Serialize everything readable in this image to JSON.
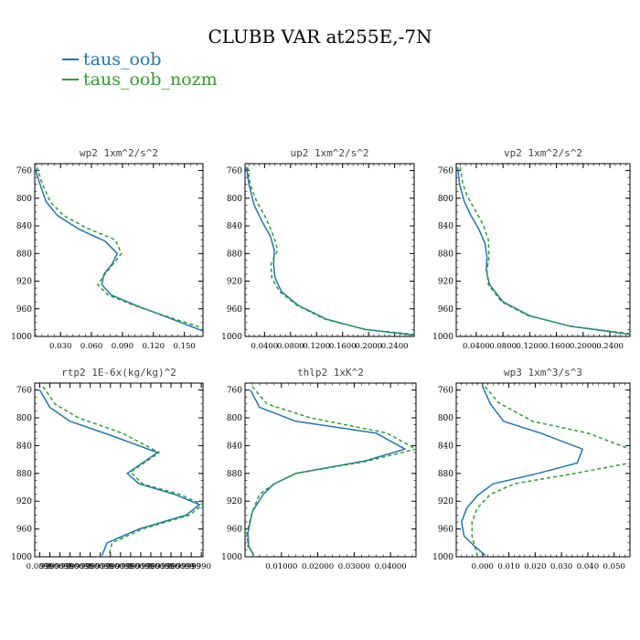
{
  "title": "CLUBB VAR at255E,-7N",
  "legend": [
    {
      "name": "taus_oob",
      "color": "#1f77b4"
    },
    {
      "name": "taus_oob_nozm",
      "color": "#2ca02c"
    }
  ],
  "chart_data": [
    {
      "type": "line",
      "title": "wp2  1xm^2/s^2",
      "xlim": [
        0.005,
        0.168
      ],
      "ylim": [
        1000,
        750
      ],
      "xticks": [
        0.03,
        0.06,
        0.09,
        0.12,
        0.15
      ],
      "xtick_labels": [
        "0.030",
        "0.060",
        "0.090",
        "0.120",
        "0.150"
      ],
      "yticks": [
        760,
        800,
        840,
        880,
        920,
        960,
        1000
      ],
      "series": [
        {
          "name": "taus_oob",
          "color": "#1f77b4",
          "dash": "",
          "points": [
            [
              0.005,
              755
            ],
            [
              0.009,
              775
            ],
            [
              0.016,
              805
            ],
            [
              0.027,
              825
            ],
            [
              0.048,
              845
            ],
            [
              0.073,
              862
            ],
            [
              0.085,
              880
            ],
            [
              0.08,
              895
            ],
            [
              0.072,
              910
            ],
            [
              0.07,
              925
            ],
            [
              0.079,
              940
            ],
            [
              0.103,
              955
            ],
            [
              0.133,
              972
            ],
            [
              0.168,
              992
            ]
          ]
        },
        {
          "name": "taus_oob_nozm",
          "color": "#2ca02c",
          "dash": "4,3",
          "points": [
            [
              0.007,
              755
            ],
            [
              0.012,
              778
            ],
            [
              0.02,
              805
            ],
            [
              0.033,
              825
            ],
            [
              0.055,
              843
            ],
            [
              0.083,
              860
            ],
            [
              0.089,
              880
            ],
            [
              0.081,
              895
            ],
            [
              0.073,
              910
            ],
            [
              0.066,
              925
            ],
            [
              0.076,
              940
            ],
            [
              0.101,
              955
            ],
            [
              0.135,
              972
            ],
            [
              0.168,
              988
            ]
          ]
        }
      ]
    },
    {
      "type": "line",
      "title": "up2  1xm^2/s^2",
      "xlim": [
        0.01,
        0.27
      ],
      "ylim": [
        1000,
        750
      ],
      "xticks": [
        0.04,
        0.08,
        0.12,
        0.16,
        0.2,
        0.24
      ],
      "xtick_labels": [
        "0.0400",
        "0.0800",
        "0.1200",
        "0.1600",
        "0.2000",
        "0.2400"
      ],
      "yticks": [
        760,
        800,
        840,
        880,
        920,
        960,
        1000
      ],
      "series": [
        {
          "name": "taus_oob",
          "color": "#1f77b4",
          "dash": "",
          "points": [
            [
              0.012,
              755
            ],
            [
              0.016,
              780
            ],
            [
              0.024,
              810
            ],
            [
              0.037,
              835
            ],
            [
              0.049,
              855
            ],
            [
              0.055,
              875
            ],
            [
              0.054,
              895
            ],
            [
              0.056,
              915
            ],
            [
              0.066,
              935
            ],
            [
              0.092,
              955
            ],
            [
              0.135,
              975
            ],
            [
              0.195,
              990
            ],
            [
              0.27,
              998
            ]
          ]
        },
        {
          "name": "taus_oob_nozm",
          "color": "#2ca02c",
          "dash": "4,3",
          "points": [
            [
              0.014,
              755
            ],
            [
              0.018,
              780
            ],
            [
              0.028,
              805
            ],
            [
              0.043,
              830
            ],
            [
              0.054,
              855
            ],
            [
              0.06,
              875
            ],
            [
              0.05,
              895
            ],
            [
              0.051,
              915
            ],
            [
              0.063,
              935
            ],
            [
              0.09,
              955
            ],
            [
              0.133,
              975
            ],
            [
              0.195,
              990
            ],
            [
              0.27,
              997
            ]
          ]
        }
      ]
    },
    {
      "type": "line",
      "title": "vp2  1xm^2/s^2",
      "xlim": [
        0.01,
        0.27
      ],
      "ylim": [
        1000,
        750
      ],
      "xticks": [
        0.04,
        0.08,
        0.12,
        0.16,
        0.2,
        0.24
      ],
      "xtick_labels": [
        "0.0400",
        "0.0800",
        "0.1200",
        "0.1600",
        "0.2000",
        "0.2400"
      ],
      "yticks": [
        760,
        800,
        840,
        880,
        920,
        960,
        1000
      ],
      "series": [
        {
          "name": "taus_oob",
          "color": "#1f77b4",
          "dash": "",
          "points": [
            [
              0.012,
              755
            ],
            [
              0.015,
              780
            ],
            [
              0.022,
              805
            ],
            [
              0.032,
              825
            ],
            [
              0.044,
              845
            ],
            [
              0.053,
              865
            ],
            [
              0.056,
              885
            ],
            [
              0.055,
              905
            ],
            [
              0.06,
              925
            ],
            [
              0.08,
              950
            ],
            [
              0.12,
              970
            ],
            [
              0.18,
              985
            ],
            [
              0.27,
              997
            ]
          ]
        },
        {
          "name": "taus_oob_nozm",
          "color": "#2ca02c",
          "dash": "4,3",
          "points": [
            [
              0.016,
              755
            ],
            [
              0.02,
              780
            ],
            [
              0.028,
              800
            ],
            [
              0.04,
              820
            ],
            [
              0.051,
              840
            ],
            [
              0.058,
              860
            ],
            [
              0.059,
              885
            ],
            [
              0.056,
              905
            ],
            [
              0.058,
              925
            ],
            [
              0.078,
              950
            ],
            [
              0.118,
              970
            ],
            [
              0.18,
              985
            ],
            [
              0.27,
              996
            ]
          ]
        }
      ]
    },
    {
      "type": "line",
      "title": "rtp2  1E-6x(kg/kg)^2",
      "xlim": [
        0.0,
        1.0
      ],
      "ylim": [
        1000,
        750
      ],
      "xticks": [
        0.03,
        0.09,
        0.15,
        0.21,
        0.27,
        0.33,
        0.39,
        0.45,
        0.51,
        0.57,
        0.63,
        0.69,
        0.75,
        0.81,
        0.87,
        0.93,
        0.99
      ],
      "xtick_labels": [
        "0.0099",
        "9999",
        "0.0099",
        "9999",
        "0.0099",
        "9999",
        "0.0099",
        "9999",
        "0.0099",
        "9999",
        "0.0099",
        "9999",
        "0.0099",
        "9999",
        "0.0099",
        "9999",
        "9990"
      ],
      "yticks": [
        760,
        800,
        840,
        880,
        920,
        960,
        1000
      ],
      "series": [
        {
          "name": "taus_oob",
          "color": "#1f77b4",
          "dash": "",
          "points": [
            [
              0.03,
              760
            ],
            [
              0.09,
              785
            ],
            [
              0.21,
              805
            ],
            [
              0.45,
              825
            ],
            [
              0.73,
              850
            ],
            [
              0.55,
              880
            ],
            [
              0.62,
              895
            ],
            [
              0.83,
              910
            ],
            [
              0.98,
              925
            ],
            [
              0.9,
              940
            ],
            [
              0.62,
              960
            ],
            [
              0.43,
              980
            ],
            [
              0.4,
              998
            ]
          ]
        },
        {
          "name": "taus_oob_nozm",
          "color": "#2ca02c",
          "dash": "4,3",
          "points": [
            [
              0.05,
              755
            ],
            [
              0.12,
              780
            ],
            [
              0.26,
              800
            ],
            [
              0.52,
              822
            ],
            [
              0.74,
              850
            ],
            [
              0.57,
              878
            ],
            [
              0.64,
              895
            ],
            [
              0.86,
              910
            ],
            [
              1.0,
              925
            ],
            [
              0.92,
              940
            ],
            [
              0.64,
              960
            ],
            [
              0.46,
              980
            ],
            [
              0.44,
              998
            ]
          ]
        }
      ]
    },
    {
      "type": "line",
      "title": "thlp2  1xK^2",
      "xlim": [
        0.0,
        0.047
      ],
      "ylim": [
        1000,
        750
      ],
      "xticks": [
        0.01,
        0.02,
        0.03,
        0.04
      ],
      "xtick_labels": [
        "0.01000",
        "0.02000",
        "0.03000",
        "0.04000"
      ],
      "yticks": [
        760,
        800,
        840,
        880,
        920,
        960,
        1000
      ],
      "series": [
        {
          "name": "taus_oob",
          "color": "#1f77b4",
          "dash": "",
          "points": [
            [
              0.0015,
              760
            ],
            [
              0.004,
              785
            ],
            [
              0.014,
              805
            ],
            [
              0.036,
              822
            ],
            [
              0.044,
              845
            ],
            [
              0.033,
              862
            ],
            [
              0.014,
              880
            ],
            [
              0.008,
              895
            ],
            [
              0.005,
              910
            ],
            [
              0.002,
              935
            ],
            [
              0.0008,
              965
            ],
            [
              0.001,
              985
            ],
            [
              0.0025,
              998
            ]
          ]
        },
        {
          "name": "taus_oob_nozm",
          "color": "#2ca02c",
          "dash": "4,3",
          "points": [
            [
              0.002,
              755
            ],
            [
              0.006,
              780
            ],
            [
              0.018,
              800
            ],
            [
              0.039,
              822
            ],
            [
              0.047,
              845
            ],
            [
              0.033,
              863
            ],
            [
              0.014,
              880
            ],
            [
              0.008,
              895
            ],
            [
              0.004,
              910
            ],
            [
              0.002,
              935
            ],
            [
              0.0005,
              965
            ],
            [
              0.0008,
              985
            ],
            [
              0.0025,
              998
            ]
          ]
        }
      ]
    },
    {
      "type": "line",
      "title": "wp3  1xm^3/s^3",
      "xlim": [
        -0.01,
        0.056
      ],
      "ylim": [
        1000,
        750
      ],
      "xticks": [
        0.0,
        0.01,
        0.02,
        0.03,
        0.04,
        0.05
      ],
      "xtick_labels": [
        "0.000",
        "0.010",
        "0.020",
        "0.030",
        "0.040",
        "0.050"
      ],
      "yticks": [
        760,
        800,
        840,
        880,
        920,
        960,
        1000
      ],
      "series": [
        {
          "name": "taus_oob",
          "color": "#1f77b4",
          "dash": "",
          "points": [
            [
              0.0,
              755
            ],
            [
              0.003,
              780
            ],
            [
              0.008,
              805
            ],
            [
              0.022,
              822
            ],
            [
              0.038,
              845
            ],
            [
              0.036,
              865
            ],
            [
              0.021,
              880
            ],
            [
              0.004,
              895
            ],
            [
              -0.002,
              912
            ],
            [
              -0.006,
              930
            ],
            [
              -0.008,
              950
            ],
            [
              -0.007,
              970
            ],
            [
              -0.003,
              985
            ],
            [
              0.001,
              998
            ]
          ]
        },
        {
          "name": "taus_oob_nozm",
          "color": "#2ca02c",
          "dash": "4,3",
          "points": [
            [
              0.001,
              755
            ],
            [
              0.006,
              778
            ],
            [
              0.019,
              805
            ],
            [
              0.04,
              822
            ],
            [
              0.056,
              845
            ],
            [
              0.056,
              865
            ],
            [
              0.035,
              880
            ],
            [
              0.012,
              895
            ],
            [
              0.003,
              910
            ],
            [
              -0.002,
              930
            ],
            [
              -0.004,
              950
            ],
            [
              -0.004,
              970
            ],
            [
              -0.003,
              985
            ],
            [
              -0.002,
              998
            ]
          ]
        }
      ]
    }
  ]
}
